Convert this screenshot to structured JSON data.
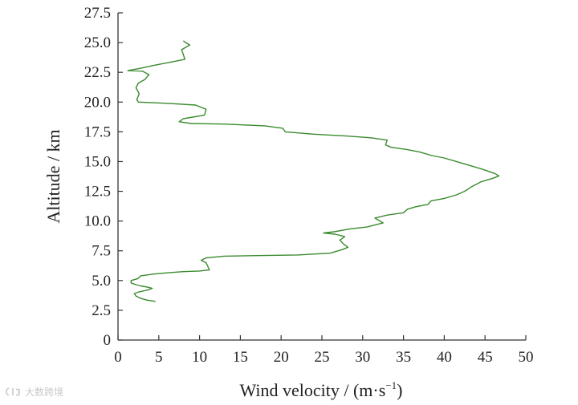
{
  "chart_data": {
    "type": "line",
    "xlabel": "Wind velocity / (m·s",
    "xlabel_sup": "−1",
    "xlabel_close": ")",
    "ylabel": "Altitude / km",
    "xlim": [
      0,
      50
    ],
    "ylim": [
      0,
      27.5
    ],
    "x_ticks": [
      "0",
      "5",
      "10",
      "15",
      "20",
      "25",
      "30",
      "35",
      "40",
      "45",
      "50"
    ],
    "y_ticks": [
      "0",
      "2.5",
      "5.0",
      "7.5",
      "10.0",
      "12.5",
      "15.0",
      "17.5",
      "20.0",
      "22.5",
      "25.0",
      "27.5"
    ],
    "grid": false,
    "line_color": "#3a8a2e",
    "series": [
      {
        "points": [
          [
            4.6,
            3.25
          ],
          [
            3.6,
            3.35
          ],
          [
            2.8,
            3.5
          ],
          [
            2.2,
            3.7
          ],
          [
            2.0,
            3.9
          ],
          [
            2.6,
            4.05
          ],
          [
            3.6,
            4.2
          ],
          [
            4.2,
            4.35
          ],
          [
            3.6,
            4.45
          ],
          [
            2.8,
            4.55
          ],
          [
            2.2,
            4.65
          ],
          [
            1.6,
            4.8
          ],
          [
            1.6,
            5.0
          ],
          [
            2.4,
            5.15
          ],
          [
            2.8,
            5.4
          ],
          [
            4.4,
            5.55
          ],
          [
            6.0,
            5.65
          ],
          [
            8.0,
            5.75
          ],
          [
            10.0,
            5.8
          ],
          [
            11.2,
            5.9
          ],
          [
            11.0,
            6.2
          ],
          [
            10.8,
            6.5
          ],
          [
            10.2,
            6.7
          ],
          [
            10.8,
            6.9
          ],
          [
            13.0,
            7.05
          ],
          [
            17.0,
            7.1
          ],
          [
            22.0,
            7.15
          ],
          [
            26.0,
            7.3
          ],
          [
            27.5,
            7.6
          ],
          [
            28.2,
            7.8
          ],
          [
            27.6,
            8.1
          ],
          [
            27.2,
            8.4
          ],
          [
            27.8,
            8.7
          ],
          [
            26.6,
            8.9
          ],
          [
            25.2,
            9.0
          ],
          [
            26.5,
            9.1
          ],
          [
            28.5,
            9.35
          ],
          [
            30.5,
            9.5
          ],
          [
            32.5,
            9.85
          ],
          [
            31.5,
            10.25
          ],
          [
            33.0,
            10.5
          ],
          [
            35.0,
            10.7
          ],
          [
            35.5,
            11.0
          ],
          [
            36.5,
            11.2
          ],
          [
            38.0,
            11.4
          ],
          [
            38.4,
            11.7
          ],
          [
            40.0,
            11.9
          ],
          [
            41.5,
            12.2
          ],
          [
            42.5,
            12.5
          ],
          [
            43.4,
            12.9
          ],
          [
            44.5,
            13.3
          ],
          [
            46.0,
            13.6
          ],
          [
            46.7,
            13.8
          ],
          [
            46.2,
            14.0
          ],
          [
            44.5,
            14.4
          ],
          [
            42.0,
            14.9
          ],
          [
            40.0,
            15.3
          ],
          [
            38.5,
            15.5
          ],
          [
            37.0,
            15.8
          ],
          [
            35.5,
            16.0
          ],
          [
            33.5,
            16.2
          ],
          [
            32.8,
            16.4
          ],
          [
            33.0,
            16.8
          ],
          [
            31.0,
            17.0
          ],
          [
            28.0,
            17.15
          ],
          [
            24.0,
            17.3
          ],
          [
            20.5,
            17.5
          ],
          [
            20.2,
            17.8
          ],
          [
            18.0,
            18.0
          ],
          [
            13.0,
            18.15
          ],
          [
            9.0,
            18.2
          ],
          [
            7.5,
            18.35
          ],
          [
            8.0,
            18.6
          ],
          [
            10.6,
            18.9
          ],
          [
            10.8,
            19.4
          ],
          [
            9.5,
            19.75
          ],
          [
            6.0,
            19.9
          ],
          [
            2.5,
            20.0
          ],
          [
            2.3,
            20.2
          ],
          [
            2.6,
            20.7
          ],
          [
            2.2,
            21.2
          ],
          [
            2.5,
            21.6
          ],
          [
            3.3,
            21.9
          ],
          [
            3.8,
            22.3
          ],
          [
            3.0,
            22.6
          ],
          [
            1.2,
            22.65
          ],
          [
            2.5,
            22.8
          ],
          [
            4.5,
            23.1
          ],
          [
            6.8,
            23.4
          ],
          [
            8.2,
            23.6
          ],
          [
            8.0,
            24.0
          ],
          [
            7.8,
            24.4
          ],
          [
            8.3,
            24.6
          ],
          [
            8.8,
            24.8
          ],
          [
            8.3,
            25.0
          ],
          [
            8.0,
            25.15
          ]
        ]
      }
    ]
  },
  "watermark": {
    "brand": "大数跨境"
  }
}
